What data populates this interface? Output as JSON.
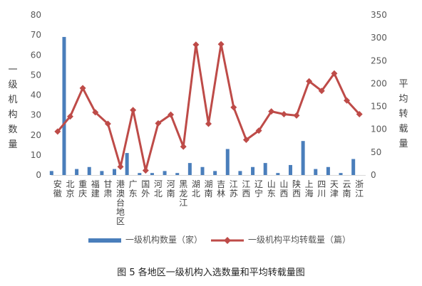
{
  "caption": "图 5   各地区一级机构入选数量和平均转载量图",
  "chart_data": {
    "type": "bar+line",
    "categories": [
      "安徽",
      "北京",
      "重庆",
      "福建",
      "甘肃",
      "港澳台地区",
      "广东",
      "国外",
      "河北",
      "河南",
      "黑龙江",
      "湖北",
      "湖南",
      "吉林",
      "江苏",
      "江西",
      "辽宁",
      "山东",
      "山西",
      "陕西",
      "上海",
      "四川",
      "天津",
      "云南",
      "浙江"
    ],
    "series": [
      {
        "name": "一级机构数量（家）",
        "type": "bar",
        "axis": "left",
        "color": "#4a7ebb",
        "values": [
          2,
          69,
          3,
          4,
          2,
          3,
          11,
          1,
          1,
          2,
          1,
          6,
          4,
          2,
          13,
          2,
          4,
          6,
          1,
          5,
          17,
          3,
          4,
          1,
          8
        ]
      },
      {
        "name": "一级机构平均转载量（篇）",
        "type": "line",
        "axis": "right",
        "color": "#be4b48",
        "values": [
          95,
          128,
          190,
          137,
          112,
          18,
          142,
          10,
          113,
          132,
          62,
          285,
          112,
          286,
          148,
          77,
          97,
          139,
          133,
          130,
          205,
          184,
          222,
          163,
          133
        ]
      }
    ],
    "y_left": {
      "title": "一级机构数量",
      "min": 0,
      "max": 80,
      "ticks": [
        "0",
        "10",
        "20",
        "30",
        "40",
        "50",
        "60",
        "70",
        "80"
      ]
    },
    "y_right": {
      "title": "平均转载量",
      "min": 0,
      "max": 350,
      "ticks": [
        "0",
        "50",
        "100",
        "150",
        "200",
        "250",
        "300",
        "350"
      ]
    },
    "grid": false,
    "legend": "bottom"
  }
}
